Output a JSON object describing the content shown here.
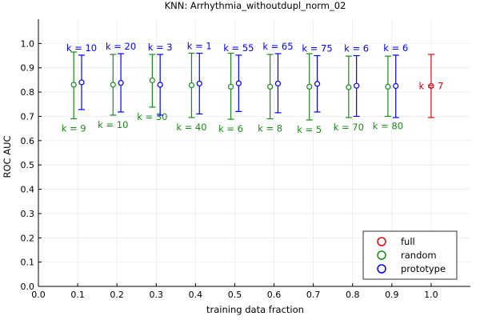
{
  "chart_data": {
    "type": "scatter",
    "title": "KNN: Arrhythmia_withoutdupl_norm_02",
    "xlabel": "training data fraction",
    "ylabel": "ROC AUC",
    "xlim": [
      0.0,
      1.1
    ],
    "ylim": [
      0.0,
      1.1
    ],
    "x_ticks": [
      "0.0",
      "0.1",
      "0.2",
      "0.3",
      "0.4",
      "0.5",
      "0.6",
      "0.7",
      "0.8",
      "0.9",
      "1.0"
    ],
    "y_ticks": [
      "0.0",
      "0.1",
      "0.2",
      "0.3",
      "0.4",
      "0.5",
      "0.6",
      "0.7",
      "0.8",
      "0.9",
      "1.0"
    ],
    "grid": true,
    "legend_position": "bottom-right",
    "series": [
      {
        "name": "full",
        "color": "#e8000b",
        "points": [
          {
            "x": 1.0,
            "y": 0.825,
            "low": 0.695,
            "high": 0.955,
            "label": "k = 7"
          }
        ]
      },
      {
        "name": "random",
        "color": "#1a8a1a",
        "points": [
          {
            "x": 0.09,
            "y": 0.83,
            "low": 0.69,
            "high": 0.965,
            "label": "k = 9"
          },
          {
            "x": 0.19,
            "y": 0.83,
            "low": 0.705,
            "high": 0.955,
            "label": "k = 10"
          },
          {
            "x": 0.29,
            "y": 0.848,
            "low": 0.738,
            "high": 0.955,
            "label": "k = 30"
          },
          {
            "x": 0.39,
            "y": 0.828,
            "low": 0.695,
            "high": 0.96,
            "label": "k = 40"
          },
          {
            "x": 0.49,
            "y": 0.822,
            "low": 0.688,
            "high": 0.96,
            "label": "k = 6"
          },
          {
            "x": 0.59,
            "y": 0.822,
            "low": 0.69,
            "high": 0.955,
            "label": "k = 8"
          },
          {
            "x": 0.69,
            "y": 0.822,
            "low": 0.685,
            "high": 0.958,
            "label": "k = 5"
          },
          {
            "x": 0.79,
            "y": 0.82,
            "low": 0.695,
            "high": 0.948,
            "label": "k = 70"
          },
          {
            "x": 0.89,
            "y": 0.822,
            "low": 0.7,
            "high": 0.948,
            "label": "k = 80"
          }
        ]
      },
      {
        "name": "prototype",
        "color": "#0000ff",
        "points": [
          {
            "x": 0.11,
            "y": 0.84,
            "low": 0.728,
            "high": 0.952,
            "label": "k = 10"
          },
          {
            "x": 0.21,
            "y": 0.838,
            "low": 0.718,
            "high": 0.958,
            "label": "k = 20"
          },
          {
            "x": 0.31,
            "y": 0.83,
            "low": 0.705,
            "high": 0.955,
            "label": "k = 3"
          },
          {
            "x": 0.41,
            "y": 0.835,
            "low": 0.71,
            "high": 0.96,
            "label": "k = 1"
          },
          {
            "x": 0.51,
            "y": 0.836,
            "low": 0.72,
            "high": 0.952,
            "label": "k = 55"
          },
          {
            "x": 0.61,
            "y": 0.835,
            "low": 0.715,
            "high": 0.958,
            "label": "k = 65"
          },
          {
            "x": 0.71,
            "y": 0.834,
            "low": 0.718,
            "high": 0.95,
            "label": "k = 75"
          },
          {
            "x": 0.81,
            "y": 0.826,
            "low": 0.7,
            "high": 0.95,
            "label": "k = 6"
          },
          {
            "x": 0.91,
            "y": 0.825,
            "low": 0.695,
            "high": 0.952,
            "label": "k = 6"
          }
        ]
      }
    ]
  }
}
